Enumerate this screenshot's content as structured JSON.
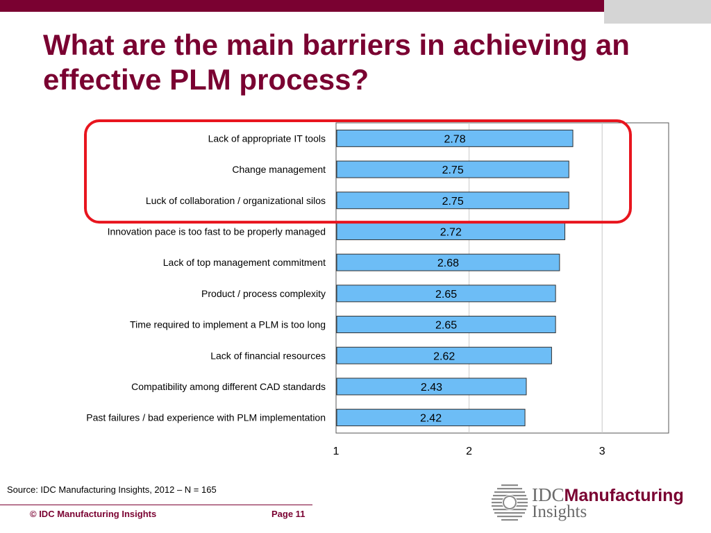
{
  "title": {
    "line1": "What are the main barriers in achieving an",
    "line2": "effective PLM process?"
  },
  "chart_data": {
    "type": "bar",
    "orientation": "horizontal",
    "categories": [
      "Lack of appropriate IT tools",
      "Change management",
      "Luck of collaboration / organizational silos",
      "Innovation pace is too fast to be properly managed",
      "Lack of top management commitment",
      "Product / process complexity",
      "Time required to implement a PLM is too long",
      "Lack of financial resources",
      "Compatibility among different CAD standards",
      "Past failures / bad experience with PLM implementation"
    ],
    "values": [
      2.78,
      2.75,
      2.75,
      2.72,
      2.68,
      2.65,
      2.65,
      2.62,
      2.43,
      2.42
    ],
    "value_labels": [
      "2.78",
      "2.75",
      "2.75",
      "2.72",
      "2.68",
      "2.65",
      "2.65",
      "2.62",
      "2.43",
      "2.42"
    ],
    "xlim": [
      1,
      3.5
    ],
    "xticks": [
      1,
      2,
      3
    ],
    "xtick_labels": [
      "1",
      "2",
      "3"
    ],
    "grid": "vertical",
    "highlight": {
      "categories": [
        0,
        1,
        2
      ],
      "color": "#e8151e"
    },
    "bar_color": "#6dbdf6",
    "bar_edge_color": "#2e2e2e"
  },
  "source": "Source: IDC Manufacturing Insights, 2012 – N = 165",
  "footer": {
    "copyright": "© IDC Manufacturing Insights",
    "page": "Page 11"
  },
  "logo": {
    "brand": "IDC",
    "product_line1": "Manufacturing",
    "product_line2": "Insights",
    "icon": "globe-icon"
  },
  "colors": {
    "brand": "#7a0131",
    "accent_gray": "#d5d5d5"
  }
}
